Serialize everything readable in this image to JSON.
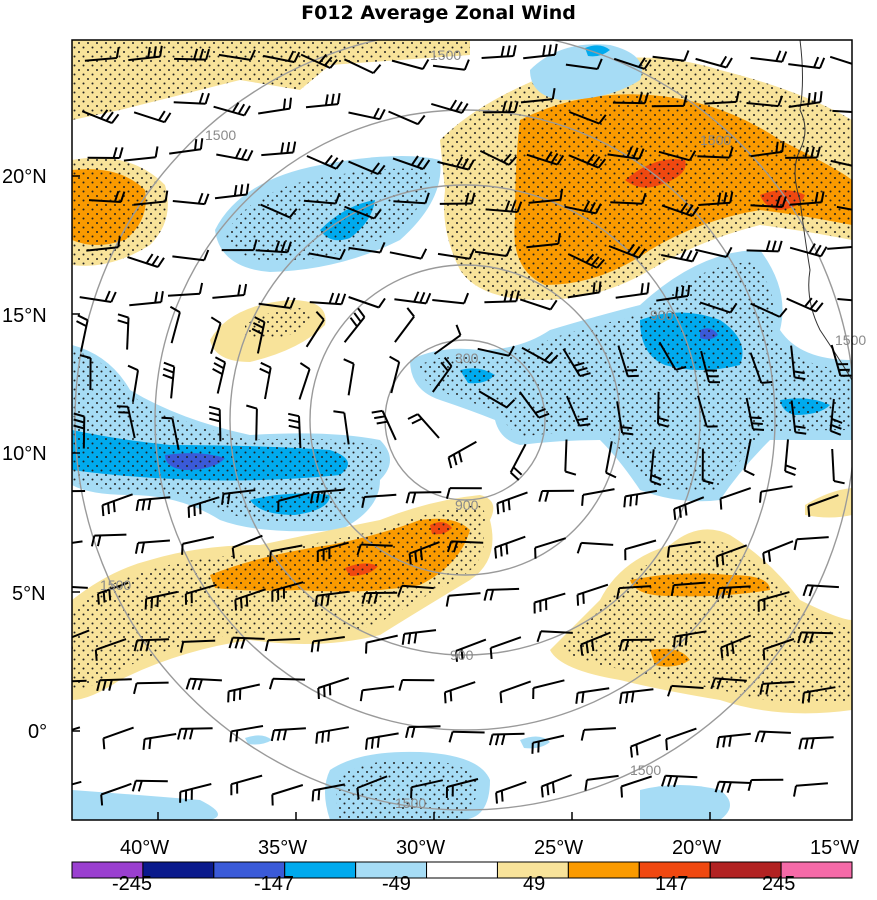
{
  "title": "F012 Average Zonal Wind",
  "map": {
    "latitude_labels": [
      "20°N",
      "15°N",
      "10°N",
      "5°N",
      "0°"
    ],
    "longitude_labels": [
      "40°W",
      "35°W",
      "30°W",
      "25°W",
      "20°W",
      "15°W"
    ],
    "range_ring_labels": [
      "300",
      "900",
      "900",
      "900",
      "1500",
      "1500",
      "1500",
      "1500",
      "1500",
      "1500",
      "1500"
    ],
    "stippling": "dotted",
    "wind_barbs": true
  },
  "colorbar": {
    "tick_labels": [
      "-245",
      "-147",
      "-49",
      "49",
      "147",
      "245"
    ],
    "colors": [
      "#9a3fd0",
      "#0a1a8c",
      "#3a5ad8",
      "#00aaee",
      "#a6dcf5",
      "#ffffff",
      "#f8e39a",
      "#fa9a00",
      "#f04810",
      "#b22222",
      "#f56aa8"
    ]
  }
}
